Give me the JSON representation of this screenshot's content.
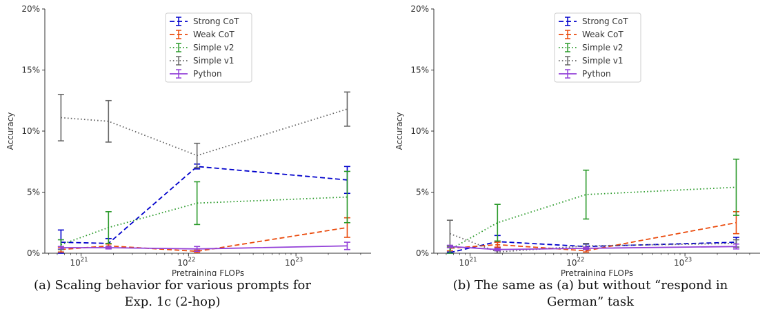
{
  "chart_data": [
    {
      "type": "line",
      "title": "",
      "xlabel": "Pretraining FLOPs",
      "ylabel": "Accuracy",
      "xscale": "log",
      "xlim": [
        4.6e+20,
        5e+23
      ],
      "ylim": [
        0,
        20
      ],
      "yticks": [
        0,
        5,
        10,
        15,
        20
      ],
      "ytick_labels": [
        "0%",
        "5%",
        "10%",
        "15%",
        "20%"
      ],
      "xticks": [
        {
          "value": 1e+21,
          "base": "10",
          "exp": "21"
        },
        {
          "value": 1e+22,
          "base": "10",
          "exp": "22"
        },
        {
          "value": 1e+23,
          "base": "10",
          "exp": "23"
        }
      ],
      "legend_position": "top-center",
      "grid": false,
      "caption": "(a) Scaling behavior for various prompts for Exp. 1c (2-hop)",
      "series": [
        {
          "name": "Strong CoT",
          "color": "#0000cc",
          "dash": "dashed",
          "x": [
            6.5e+20,
            1.8e+21,
            1.2e+22,
            3e+23
          ],
          "y": [
            0.9,
            0.8,
            7.1,
            6.0
          ],
          "err": [
            1.0,
            0.4,
            0.2,
            1.1
          ]
        },
        {
          "name": "Weak CoT",
          "color": "#ea4a0c",
          "dash": "dashed",
          "x": [
            6.5e+20,
            1.8e+21,
            1.2e+22,
            3e+23
          ],
          "y": [
            0.3,
            0.6,
            0.15,
            2.1
          ],
          "err": [
            0.2,
            0.15,
            0.1,
            0.8
          ]
        },
        {
          "name": "Simple v2",
          "color": "#2a9a2a",
          "dash": "dotted",
          "x": [
            6.5e+20,
            1.8e+21,
            1.2e+22,
            3e+23
          ],
          "y": [
            0.7,
            2.1,
            4.1,
            4.6
          ],
          "err": [
            0.4,
            1.3,
            1.75,
            2.1
          ]
        },
        {
          "name": "Simple v1",
          "color": "#666666",
          "dash": "dotted",
          "x": [
            6.5e+20,
            1.8e+21,
            1.2e+22,
            3e+23
          ],
          "y": [
            11.1,
            10.8,
            8.0,
            11.8
          ],
          "err": [
            1.9,
            1.7,
            1.0,
            1.4
          ]
        },
        {
          "name": "Python",
          "color": "#9340d8",
          "dash": "solid",
          "x": [
            6.5e+20,
            1.8e+21,
            1.2e+22,
            3e+23
          ],
          "y": [
            0.45,
            0.45,
            0.35,
            0.6
          ],
          "err": [
            0.1,
            0.1,
            0.2,
            0.3
          ]
        }
      ]
    },
    {
      "type": "line",
      "title": "",
      "xlabel": "Pretraining FLOPs",
      "ylabel": "Accuracy",
      "xscale": "log",
      "xlim": [
        4.6e+20,
        5e+23
      ],
      "ylim": [
        0,
        20
      ],
      "yticks": [
        0,
        5,
        10,
        15,
        20
      ],
      "ytick_labels": [
        "0%",
        "5%",
        "10%",
        "15%",
        "20%"
      ],
      "xticks": [
        {
          "value": 1e+21,
          "base": "10",
          "exp": "21"
        },
        {
          "value": 1e+22,
          "base": "10",
          "exp": "22"
        },
        {
          "value": 1e+23,
          "base": "10",
          "exp": "23"
        }
      ],
      "legend_position": "top-center",
      "grid": false,
      "caption": "(b) The same as (a) but without “respond in German” task",
      "series": [
        {
          "name": "Strong CoT",
          "color": "#0000cc",
          "dash": "dashed",
          "x": [
            6.5e+20,
            1.8e+21,
            1.2e+22,
            3e+23
          ],
          "y": [
            0.05,
            0.95,
            0.55,
            0.9
          ],
          "err": [
            0.05,
            0.5,
            0.2,
            0.4
          ]
        },
        {
          "name": "Weak CoT",
          "color": "#ea4a0c",
          "dash": "dashed",
          "x": [
            6.5e+20,
            1.8e+21,
            1.2e+22,
            3e+23
          ],
          "y": [
            0.4,
            0.7,
            0.2,
            2.5
          ],
          "err": [
            0.2,
            0.2,
            0.1,
            0.9
          ]
        },
        {
          "name": "Simple v2",
          "color": "#2a9a2a",
          "dash": "dotted",
          "x": [
            6.5e+20,
            1.8e+21,
            1.2e+22,
            3e+23
          ],
          "y": [
            0.3,
            2.5,
            4.8,
            5.4
          ],
          "err": [
            0.3,
            1.5,
            2.0,
            2.3
          ]
        },
        {
          "name": "Simple v1",
          "color": "#666666",
          "dash": "dotted",
          "x": [
            6.5e+20,
            1.8e+21,
            1.2e+22,
            3e+23
          ],
          "y": [
            1.6,
            0.1,
            0.6,
            0.8
          ],
          "err": [
            1.1,
            0.1,
            0.2,
            0.3
          ]
        },
        {
          "name": "Python",
          "color": "#9340d8",
          "dash": "solid",
          "x": [
            6.5e+20,
            1.8e+21,
            1.2e+22,
            3e+23
          ],
          "y": [
            0.55,
            0.3,
            0.4,
            0.55
          ],
          "err": [
            0.1,
            0.1,
            0.1,
            0.2
          ]
        }
      ]
    }
  ]
}
